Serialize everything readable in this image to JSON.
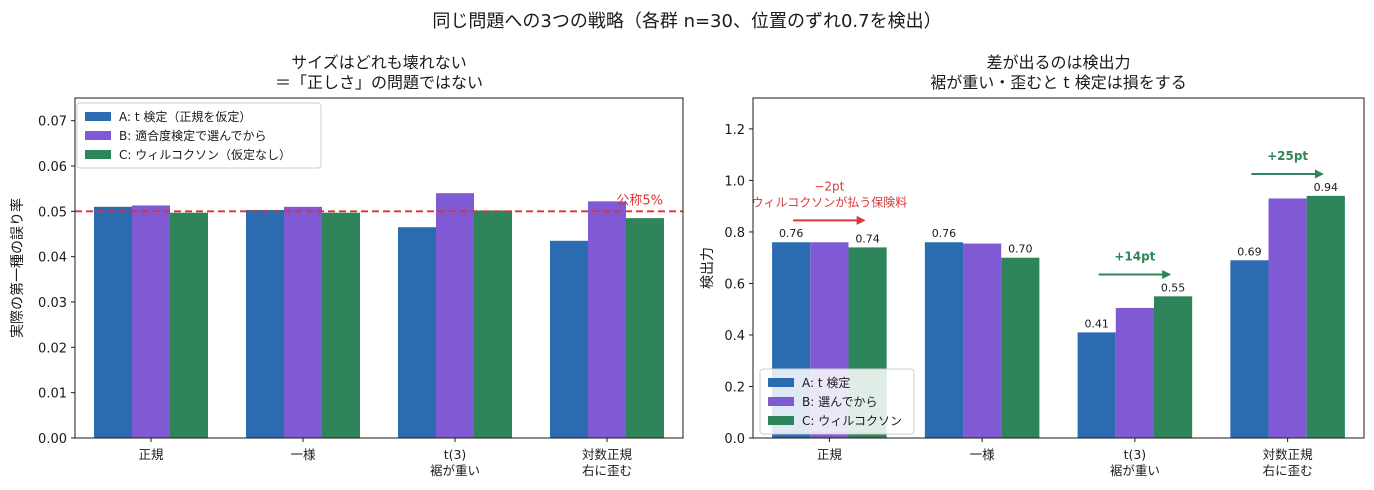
{
  "figure": {
    "suptitle": "同じ問題への3つの戦略（各群 n=30、位置のずれ0.7を検出）"
  },
  "colors": {
    "A": "#2b6cb0",
    "B": "#805ad5",
    "C": "#2f855a",
    "reference": "#e03131",
    "annotation_red": "#d63a3a",
    "annotation_green": "#2f855a"
  },
  "chart_data": [
    {
      "type": "bar",
      "title_line1": "サイズはどれも壊れない",
      "title_line2": "＝「正しさ」の問題ではない",
      "xlabel": "",
      "ylabel": "実際の第一種の誤り率",
      "ylim": [
        0,
        0.075
      ],
      "yticks": [
        "0.00",
        "0.01",
        "0.02",
        "0.03",
        "0.04",
        "0.05",
        "0.06",
        "0.07"
      ],
      "categories": [
        [
          "正規"
        ],
        [
          "一様"
        ],
        [
          "t(3)",
          "裾が重い"
        ],
        [
          "対数正規",
          "右に歪む"
        ]
      ],
      "series": [
        {
          "name": "A: t 検定（正規を仮定）",
          "values": [
            0.051,
            0.0503,
            0.0465,
            0.0435
          ]
        },
        {
          "name": "B: 適合度検定で選んでから",
          "values": [
            0.0513,
            0.051,
            0.054,
            0.0522
          ]
        },
        {
          "name": "C: ウィルコクソン（仮定なし）",
          "values": [
            0.0497,
            0.0497,
            0.0502,
            0.0485
          ]
        }
      ],
      "reference_line": {
        "value": 0.05,
        "label": "公称5%"
      },
      "legend_position": "upper-left",
      "grid": false
    },
    {
      "type": "bar",
      "title_line1": "差が出るのは検出力",
      "title_line2": "裾が重い・歪むと t 検定は損をする",
      "xlabel": "",
      "ylabel": "検出力",
      "ylim": [
        0,
        1.32
      ],
      "yticks": [
        "0.0",
        "0.2",
        "0.4",
        "0.6",
        "0.8",
        "1.0",
        "1.2"
      ],
      "categories": [
        [
          "正規"
        ],
        [
          "一様"
        ],
        [
          "t(3)",
          "裾が重い"
        ],
        [
          "対数正規",
          "右に歪む"
        ]
      ],
      "series": [
        {
          "name": "A: t 検定",
          "values": [
            0.76,
            0.76,
            0.41,
            0.69
          ]
        },
        {
          "name": "B: 選んでから",
          "values": [
            0.76,
            0.755,
            0.505,
            0.93
          ]
        },
        {
          "name": "C: ウィルコクソン",
          "values": [
            0.74,
            0.7,
            0.55,
            0.94
          ]
        }
      ],
      "value_labels": [
        {
          "category": 0,
          "series": 0,
          "text": "0.76"
        },
        {
          "category": 0,
          "series": 2,
          "text": "0.74"
        },
        {
          "category": 1,
          "series": 0,
          "text": "0.76"
        },
        {
          "category": 1,
          "series": 2,
          "text": "0.70"
        },
        {
          "category": 2,
          "series": 0,
          "text": "0.41"
        },
        {
          "category": 2,
          "series": 2,
          "text": "0.55"
        },
        {
          "category": 3,
          "series": 0,
          "text": "0.69"
        },
        {
          "category": 3,
          "series": 2,
          "text": "0.94"
        }
      ],
      "annotations": [
        {
          "category": 0,
          "lines": [
            "−2pt",
            "ウィルコクソンが払う保険料"
          ],
          "color": "red",
          "arrow_y": 0.845,
          "bold": false
        },
        {
          "category": 2,
          "lines": [
            "+14pt"
          ],
          "color": "green",
          "arrow_y": 0.635,
          "bold": true
        },
        {
          "category": 3,
          "lines": [
            "+25pt"
          ],
          "color": "green",
          "arrow_y": 1.025,
          "bold": true
        }
      ],
      "legend_position": "lower-left",
      "grid": false
    }
  ]
}
